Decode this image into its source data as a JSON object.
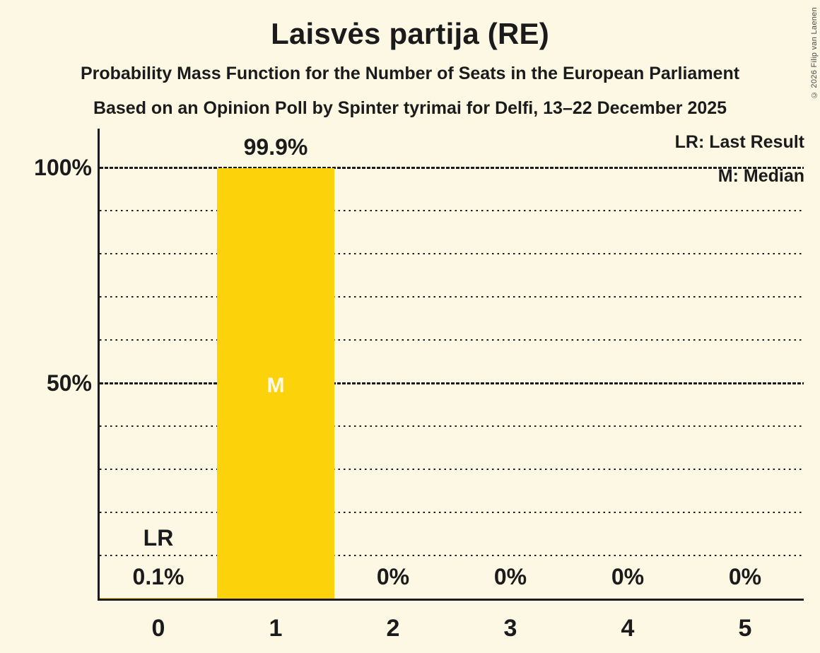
{
  "page": {
    "background": "#FCF8E3",
    "text_color": "#1B1B1B",
    "copyright": "© 2026 Filip van Laenen"
  },
  "chart_data": {
    "type": "bar",
    "title": "Laisvės partija (RE)",
    "subtitle": "Probability Mass Function for the Number of Seats in the European Parliament",
    "poll_note": "Based on an Opinion Poll by Spinter tyrimai for Delfi, 13–22 December 2025",
    "xlabel": "",
    "ylabel": "",
    "ylim": [
      0,
      100
    ],
    "ytick_interval_pct": 10,
    "yticks_labeled": [
      {
        "value": 100,
        "label": "100%"
      },
      {
        "value": 50,
        "label": "50%"
      }
    ],
    "grid": "horizontal dotted lines every 10%, dense dashed lines at 50% and 100%",
    "legend_position": "top-right",
    "legend": [
      {
        "key": "LR",
        "label": "LR: Last Result"
      },
      {
        "key": "M",
        "label": "M: Median"
      }
    ],
    "categories": [
      "0",
      "1",
      "2",
      "3",
      "4",
      "5"
    ],
    "series": [
      {
        "name": "seat-probability",
        "values": [
          0.1,
          99.9,
          0,
          0,
          0,
          0
        ]
      }
    ],
    "value_labels": [
      "0.1%",
      "99.9%",
      "0%",
      "0%",
      "0%",
      "0%"
    ],
    "annotations": [
      {
        "type": "last_result",
        "category": "0",
        "label": "LR"
      },
      {
        "type": "median",
        "category": "1",
        "label": "M"
      }
    ],
    "bar_color": "#FCD20B",
    "median_label_color": "#FDF9E8"
  }
}
